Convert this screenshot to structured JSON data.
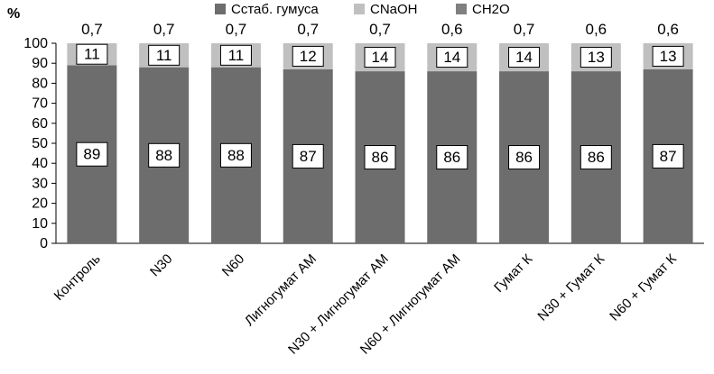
{
  "chart_data": {
    "type": "bar",
    "stacked": true,
    "ylabel": "%",
    "ylim": [
      0,
      100
    ],
    "yticks": [
      "0",
      "10",
      "20",
      "30",
      "40",
      "50",
      "60",
      "70",
      "80",
      "90",
      "100"
    ],
    "categories": [
      "Контроль",
      "N30",
      "N60",
      "Лигногумат АМ",
      "N30 + Лигногумат АМ",
      "N60 + Лигногумат АМ",
      "Гумат К",
      "N30 + Гумат К",
      "N60 + Гумат К"
    ],
    "series": [
      {
        "name": "Сстаб. гумуса",
        "color": "#6d6d6d",
        "values": [
          89,
          88,
          88,
          87,
          86,
          86,
          86,
          86,
          87
        ]
      },
      {
        "name": "CNaOH",
        "color": "#c0c0c0",
        "values": [
          11,
          11,
          11,
          12,
          14,
          14,
          14,
          13,
          13
        ]
      },
      {
        "name": "CH2O",
        "color": "#808080",
        "values": [
          0.7,
          0.7,
          0.7,
          0.7,
          0.7,
          0.6,
          0.7,
          0.6,
          0.6
        ]
      }
    ],
    "top_labels": [
      "0,7",
      "0,7",
      "0,7",
      "0,7",
      "0,7",
      "0,6",
      "0,7",
      "0,6",
      "0,6"
    ],
    "legend_position": "top"
  }
}
